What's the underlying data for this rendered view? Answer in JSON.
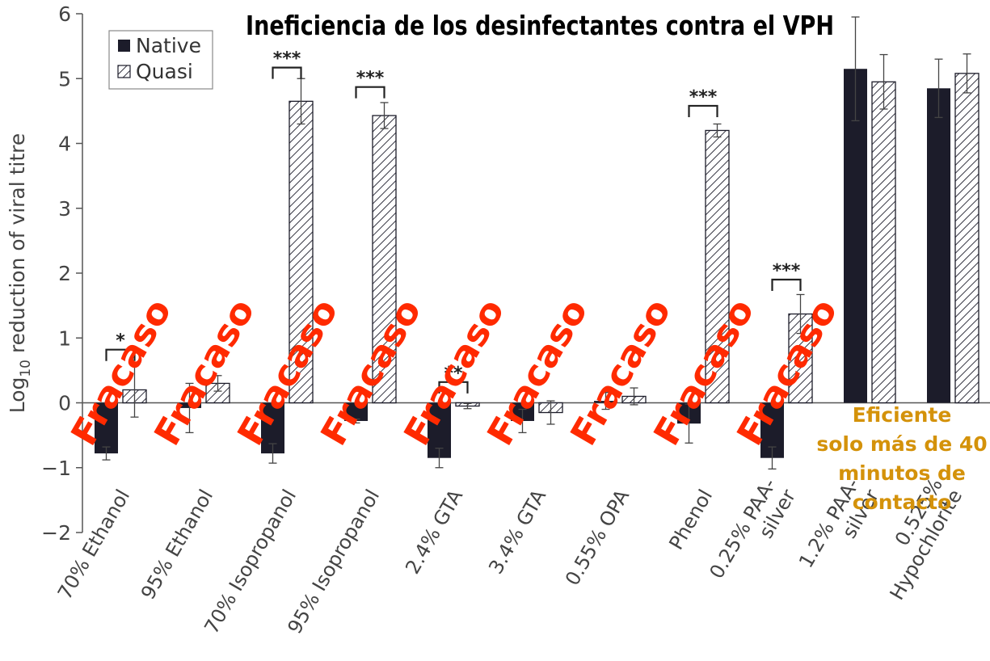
{
  "chart_data": {
    "type": "bar",
    "title": "Ineficiencia de los desinfectantes contra el VPH",
    "ylabel_prefix": "Log",
    "ylabel_sub": "10",
    "ylabel_rest": " reduction of viral titre",
    "xlabel": "",
    "ylim": [
      -2,
      6
    ],
    "yticks": [
      6,
      5,
      4,
      3,
      2,
      1,
      0,
      -1,
      -2
    ],
    "ytick_labels": [
      "6",
      "5",
      "4",
      "3",
      "2",
      "1",
      "0",
      "−1",
      "−2"
    ],
    "legend_position": "top-left",
    "categories": [
      [
        "70% Ethanol"
      ],
      [
        "95% Ethanol"
      ],
      [
        "70% Isopropanol"
      ],
      [
        "95% Isopropanol"
      ],
      [
        "2.4% GTA"
      ],
      [
        "3.4% GTA"
      ],
      [
        "0.55% OPA"
      ],
      [
        "Phenol"
      ],
      [
        "0.25% PAA-",
        "silver"
      ],
      [
        "1.2% PAA-",
        "silver"
      ],
      [
        "0.525%",
        "Hypochlorite"
      ]
    ],
    "series": [
      {
        "name": "Native",
        "color": "#1c1c2a",
        "pattern": "solid",
        "values": [
          -0.78,
          -0.08,
          -0.78,
          -0.28,
          -0.85,
          -0.28,
          0.03,
          -0.32,
          -0.85,
          5.15,
          4.85
        ],
        "errors": [
          0.1,
          0.38,
          0.15,
          0.03,
          0.15,
          0.18,
          0.13,
          0.3,
          0.17,
          0.8,
          0.45
        ]
      },
      {
        "name": "Quasi",
        "color": "#1c1c2a",
        "pattern": "hatched",
        "values": [
          0.2,
          0.3,
          4.65,
          4.43,
          -0.05,
          -0.15,
          0.1,
          4.2,
          1.37,
          4.95,
          5.08
        ],
        "errors": [
          0.42,
          0.12,
          0.35,
          0.2,
          0.04,
          0.18,
          0.13,
          0.1,
          0.3,
          0.42,
          0.3
        ]
      }
    ],
    "significance": [
      {
        "category_index": 0,
        "label": "*",
        "y": 0.82
      },
      {
        "category_index": 2,
        "label": "***",
        "y": 5.17
      },
      {
        "category_index": 3,
        "label": "***",
        "y": 4.87
      },
      {
        "category_index": 4,
        "label": "**",
        "y": 0.32
      },
      {
        "category_index": 7,
        "label": "***",
        "y": 4.58
      },
      {
        "category_index": 8,
        "label": "***",
        "y": 1.9
      }
    ],
    "annotations": {
      "fail_label": "Fracaso",
      "fail_color": "#ff2a00",
      "fail_category_indices": [
        0,
        1,
        2,
        3,
        4,
        5,
        6,
        7,
        8
      ],
      "efficient_lines": [
        "Eficiente",
        "solo más de 40",
        "minutos de",
        "contacto"
      ],
      "efficient_color": "#d4920a"
    }
  }
}
